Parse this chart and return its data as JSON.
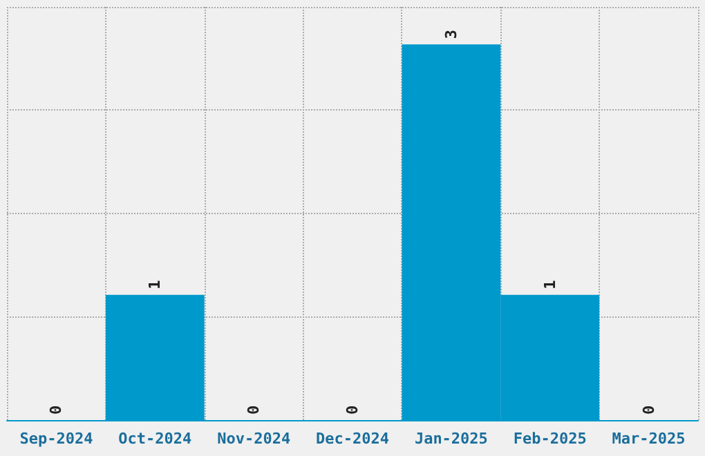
{
  "chart_data": {
    "type": "bar",
    "categories": [
      "Sep-2024",
      "Oct-2024",
      "Nov-2024",
      "Dec-2024",
      "Jan-2025",
      "Feb-2025",
      "Mar-2025"
    ],
    "values": [
      0,
      1,
      0,
      0,
      3,
      1,
      0
    ],
    "color": "#0099cc",
    "ylim": [
      0,
      3.3
    ],
    "grid": true,
    "data_labels": true,
    "tick_labels": "x"
  }
}
